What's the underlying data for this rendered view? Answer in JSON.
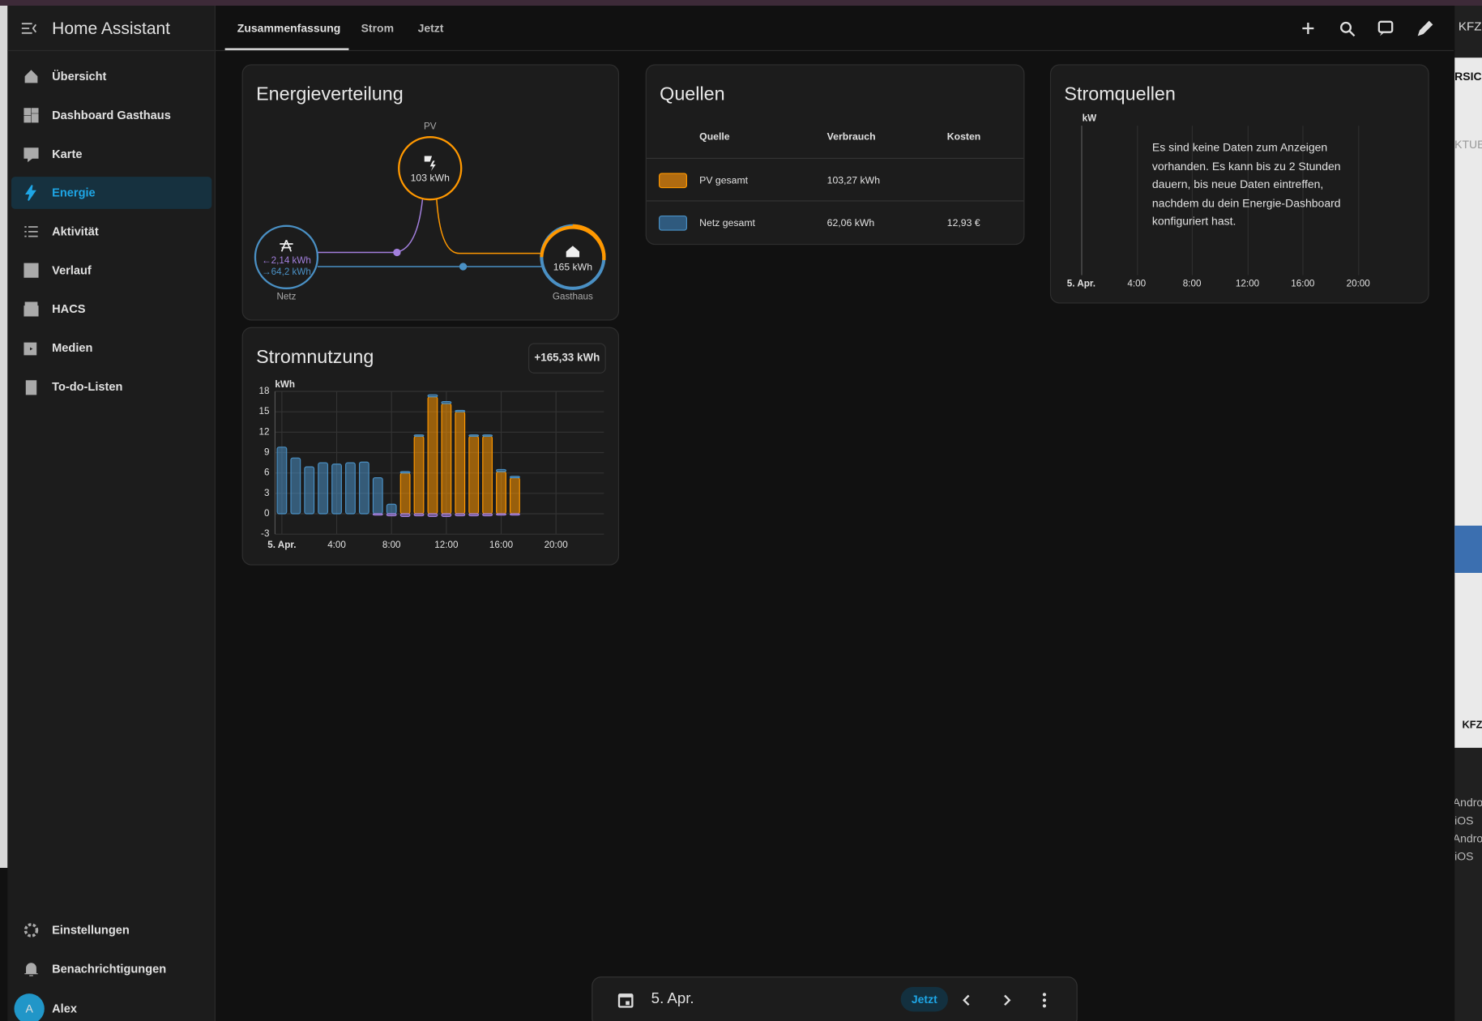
{
  "app": {
    "title": "Home Assistant"
  },
  "sidebar": {
    "items": [
      "Übersicht",
      "Dashboard Gasthaus",
      "Karte",
      "Energie",
      "Aktivität",
      "Verlauf",
      "HACS",
      "Medien",
      "To-do-Listen"
    ],
    "bottom": [
      "Einstellungen",
      "Benachrichtigungen"
    ],
    "user": {
      "initial": "A",
      "name": "Alex"
    }
  },
  "tabs": [
    "Zusammenfassung",
    "Strom",
    "Jetzt"
  ],
  "distribution": {
    "title": "Energieverteilung",
    "pv": {
      "label": "PV",
      "value": "103 kWh"
    },
    "grid": {
      "label": "Netz",
      "returned": "←2,14 kWh",
      "consumed": "→64,2 kWh"
    },
    "home": {
      "label": "Gasthaus",
      "value": "165 kWh"
    }
  },
  "sources": {
    "title": "Quellen",
    "columns": [
      "Quelle",
      "Verbrauch",
      "Kosten"
    ],
    "rows": [
      {
        "name": "PV gesamt",
        "usage": "103,27 kWh"
      },
      {
        "name": "Netz gesamt",
        "usage": "62,06 kWh",
        "cost": "12,93 €"
      }
    ]
  },
  "power_sources": {
    "title": "Stromquellen",
    "unit": "kW",
    "message": "Es sind keine Daten zum Anzeigen vorhanden. Es kann bis zu 2 Stunden dauern, bis neue Daten eintreffen, nachdem du dein Energie-Dashboard konfiguriert hast.",
    "xticks": [
      "5. Apr.",
      "4:00",
      "8:00",
      "12:00",
      "16:00",
      "20:00"
    ]
  },
  "chart_data": {
    "type": "bar",
    "title": "Stromnutzung",
    "badge": "+165,33 kWh",
    "y_label": "kWh",
    "x": [
      0,
      1,
      2,
      3,
      4,
      5,
      6,
      7,
      8,
      9,
      10,
      11,
      12,
      13,
      14,
      15,
      16,
      17
    ],
    "series": [
      {
        "color": "#ff9800",
        "values": [
          0,
          0,
          0,
          0,
          0,
          0,
          0,
          0,
          0,
          6.0,
          11.4,
          17.2,
          16.2,
          15.0,
          11.4,
          11.4,
          6.2,
          5.3
        ]
      },
      {
        "color": "#4a90c4",
        "values": [
          9.8,
          8.2,
          6.9,
          7.5,
          7.3,
          7.5,
          7.6,
          5.3,
          1.4,
          0.2,
          0.2,
          0.3,
          0.3,
          0.2,
          0.2,
          0.2,
          0.3,
          0.2
        ]
      },
      {
        "color": "#a27fdc",
        "values": [
          0,
          0,
          0,
          0,
          0,
          0,
          0,
          -0.2,
          -0.3,
          -0.4,
          -0.3,
          -0.4,
          -0.4,
          -0.3,
          -0.3,
          -0.3,
          -0.2,
          -0.2
        ]
      }
    ],
    "xlim": [
      -0.5,
      23.5
    ],
    "xticks": [
      {
        "value": 0,
        "label": "5. Apr."
      },
      {
        "value": 4,
        "label": "4:00"
      },
      {
        "value": 8,
        "label": "8:00"
      },
      {
        "value": 12,
        "label": "12:00"
      },
      {
        "value": 16,
        "label": "16:00"
      },
      {
        "value": 20,
        "label": "20:00"
      }
    ],
    "ylim": [
      -3,
      18
    ],
    "yticks": [
      -3,
      0,
      3,
      6,
      9,
      12,
      15,
      18
    ],
    "grid": true
  },
  "bottom_bar": {
    "date": "5. Apr.",
    "now": "Jetzt"
  },
  "side_window": [
    "KFZ",
    "RSIC",
    "KTUE",
    "KFZ",
    "Andro",
    "iOS",
    "Andro",
    "iOS"
  ]
}
